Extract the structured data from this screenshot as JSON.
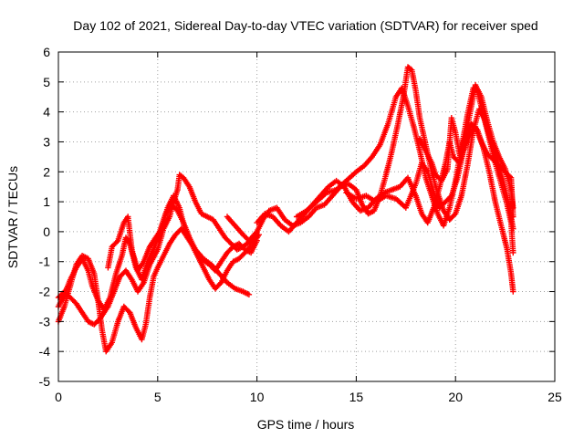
{
  "chart_data": {
    "type": "scatter",
    "title": "Day 102 of 2021, Sidereal Day-to-day VTEC variation (SDTVAR) for receiver sped",
    "xlabel": "GPS time / hours",
    "ylabel": "SDTVAR / TECUs",
    "xlim": [
      0,
      25
    ],
    "ylim": [
      -5,
      6
    ],
    "xticks": [
      "0",
      "5",
      "10",
      "15",
      "20",
      "25"
    ],
    "yticks": [
      "-5",
      "-4",
      "-3",
      "-2",
      "-1",
      "0",
      "1",
      "2",
      "3",
      "4",
      "5",
      "6"
    ],
    "grid": true,
    "marker": "+",
    "color": "#ff0000",
    "series": [
      {
        "points": [
          [
            0,
            -3.0
          ],
          [
            0.3,
            -2.5
          ],
          [
            0.6,
            -1.8
          ],
          [
            0.9,
            -1.1
          ],
          [
            1.2,
            -0.8
          ],
          [
            1.5,
            -0.9
          ],
          [
            1.8,
            -1.4
          ],
          [
            2.0,
            -2.3
          ],
          [
            2.2,
            -3.3
          ],
          [
            2.4,
            -4.0
          ],
          [
            2.7,
            -3.7
          ],
          [
            3.0,
            -3.0
          ],
          [
            3.3,
            -2.5
          ],
          [
            3.6,
            -2.7
          ],
          [
            3.9,
            -3.2
          ],
          [
            4.2,
            -3.6
          ],
          [
            4.4,
            -3.1
          ],
          [
            4.6,
            -2.2
          ],
          [
            4.8,
            -1.5
          ],
          [
            5.0,
            -1.2
          ],
          [
            5.3,
            -0.8
          ],
          [
            5.6,
            -0.4
          ],
          [
            5.9,
            -0.1
          ],
          [
            6.2,
            0.1
          ],
          [
            6.5,
            -0.2
          ],
          [
            6.9,
            -0.6
          ],
          [
            7.3,
            -0.9
          ],
          [
            7.7,
            -1.1
          ],
          [
            8.1,
            -1.4
          ],
          [
            8.5,
            -1.7
          ],
          [
            8.9,
            -1.9
          ],
          [
            9.3,
            -2.0
          ],
          [
            9.6,
            -2.1
          ]
        ]
      },
      {
        "points": [
          [
            0,
            -2.2
          ],
          [
            0.3,
            -2.0
          ],
          [
            0.6,
            -2.2
          ],
          [
            0.9,
            -2.4
          ],
          [
            1.2,
            -2.7
          ],
          [
            1.5,
            -3.0
          ],
          [
            1.8,
            -3.1
          ],
          [
            2.1,
            -2.9
          ],
          [
            2.5,
            -2.5
          ],
          [
            2.8,
            -2.0
          ],
          [
            3.1,
            -1.5
          ],
          [
            3.4,
            -1.3
          ],
          [
            3.7,
            -1.6
          ],
          [
            4.0,
            -2.0
          ],
          [
            4.3,
            -1.7
          ],
          [
            4.6,
            -1.1
          ],
          [
            5.0,
            -0.6
          ],
          [
            5.3,
            0.1
          ],
          [
            5.6,
            0.5
          ],
          [
            5.8,
            1.0
          ],
          [
            6.0,
            1.4
          ],
          [
            6.1,
            1.9
          ],
          [
            6.3,
            1.8
          ],
          [
            6.6,
            1.5
          ],
          [
            6.9,
            1.0
          ],
          [
            7.2,
            0.6
          ],
          [
            7.5,
            0.5
          ],
          [
            7.8,
            0.4
          ],
          [
            8.1,
            0.1
          ],
          [
            8.4,
            -0.2
          ],
          [
            8.7,
            -0.4
          ],
          [
            9.0,
            -0.6
          ],
          [
            9.3,
            -0.5
          ],
          [
            9.7,
            -0.3
          ],
          [
            10.0,
            -0.1
          ]
        ]
      },
      {
        "points": [
          [
            0,
            -2.5
          ],
          [
            0.3,
            -2.1
          ],
          [
            0.6,
            -1.6
          ],
          [
            0.9,
            -1.2
          ],
          [
            1.2,
            -0.9
          ],
          [
            1.5,
            -1.3
          ],
          [
            1.7,
            -1.8
          ],
          [
            2.0,
            -2.3
          ],
          [
            2.3,
            -2.6
          ],
          [
            2.6,
            -2.2
          ],
          [
            2.9,
            -1.4
          ],
          [
            3.2,
            -0.8
          ],
          [
            3.4,
            -0.2
          ],
          [
            3.6,
            -0.4
          ],
          [
            3.9,
            -1.2
          ],
          [
            4.2,
            -1.6
          ],
          [
            4.5,
            -1.0
          ],
          [
            4.8,
            -0.6
          ],
          [
            5.1,
            0.0
          ],
          [
            5.4,
            0.6
          ],
          [
            5.7,
            0.9
          ],
          [
            6.0,
            0.7
          ],
          [
            6.3,
            0.3
          ],
          [
            6.6,
            -0.2
          ],
          [
            6.9,
            -0.6
          ],
          [
            7.2,
            -0.9
          ],
          [
            7.6,
            -1.1
          ],
          [
            7.9,
            -1.3
          ],
          [
            8.2,
            -1.0
          ],
          [
            8.5,
            -0.7
          ],
          [
            8.8,
            -0.5
          ],
          [
            9.1,
            -0.4
          ],
          [
            9.4,
            -0.6
          ],
          [
            9.7,
            -0.7
          ],
          [
            10.0,
            -0.3
          ]
        ]
      },
      {
        "points": [
          [
            2.5,
            -1.2
          ],
          [
            2.7,
            -0.5
          ],
          [
            3.0,
            -0.3
          ],
          [
            3.3,
            0.3
          ],
          [
            3.5,
            0.5
          ],
          [
            3.7,
            -0.6
          ],
          [
            4.0,
            -1.3
          ],
          [
            4.3,
            -1.0
          ],
          [
            4.6,
            -0.5
          ],
          [
            4.9,
            -0.2
          ],
          [
            5.2,
            0.1
          ],
          [
            5.5,
            0.8
          ],
          [
            5.8,
            1.2
          ],
          [
            6.1,
            0.8
          ],
          [
            6.4,
            0.0
          ],
          [
            6.7,
            -0.4
          ],
          [
            7.0,
            -0.8
          ],
          [
            7.3,
            -1.2
          ],
          [
            7.6,
            -1.6
          ],
          [
            7.9,
            -1.9
          ],
          [
            8.2,
            -1.7
          ],
          [
            8.5,
            -1.3
          ],
          [
            8.8,
            -1.0
          ],
          [
            9.1,
            -0.9
          ],
          [
            9.4,
            -0.7
          ],
          [
            9.8,
            -0.4
          ],
          [
            10.1,
            -0.1
          ]
        ]
      },
      {
        "points": [
          [
            8.5,
            0.5
          ],
          [
            8.9,
            0.2
          ],
          [
            9.3,
            -0.1
          ],
          [
            9.6,
            -0.3
          ],
          [
            10.0,
            0.0
          ],
          [
            10.3,
            0.4
          ],
          [
            10.6,
            0.7
          ],
          [
            11.0,
            0.8
          ],
          [
            11.4,
            0.4
          ],
          [
            11.8,
            0.2
          ],
          [
            12.2,
            0.3
          ],
          [
            12.6,
            0.5
          ],
          [
            13.0,
            0.8
          ],
          [
            13.4,
            0.9
          ],
          [
            13.8,
            1.2
          ],
          [
            14.2,
            1.5
          ],
          [
            14.6,
            1.6
          ],
          [
            15.0,
            1.4
          ],
          [
            15.3,
            0.9
          ],
          [
            15.6,
            0.6
          ],
          [
            15.9,
            0.7
          ],
          [
            16.2,
            1.2
          ],
          [
            16.5,
            1.9
          ],
          [
            16.8,
            2.7
          ],
          [
            17.1,
            3.6
          ],
          [
            17.4,
            4.6
          ],
          [
            17.6,
            5.5
          ],
          [
            17.8,
            5.4
          ],
          [
            18.0,
            4.7
          ],
          [
            18.2,
            3.8
          ],
          [
            18.5,
            2.9
          ],
          [
            18.8,
            2.0
          ],
          [
            19.1,
            1.3
          ],
          [
            19.4,
            0.7
          ],
          [
            19.7,
            0.4
          ],
          [
            20.0,
            0.6
          ],
          [
            20.3,
            1.2
          ],
          [
            20.6,
            2.2
          ],
          [
            20.9,
            3.4
          ],
          [
            21.2,
            4.1
          ],
          [
            21.5,
            3.7
          ],
          [
            21.8,
            3.0
          ],
          [
            22.1,
            2.4
          ],
          [
            22.4,
            1.7
          ],
          [
            22.7,
            0.9
          ],
          [
            22.9,
            0.1
          ]
        ]
      },
      {
        "points": [
          [
            10.0,
            0.3
          ],
          [
            10.4,
            0.6
          ],
          [
            10.8,
            0.5
          ],
          [
            11.2,
            0.2
          ],
          [
            11.6,
            0.0
          ],
          [
            12.0,
            0.3
          ],
          [
            12.4,
            0.6
          ],
          [
            12.8,
            0.9
          ],
          [
            13.2,
            1.2
          ],
          [
            13.6,
            1.5
          ],
          [
            14.0,
            1.7
          ],
          [
            14.4,
            1.5
          ],
          [
            14.8,
            1.0
          ],
          [
            15.2,
            0.7
          ],
          [
            15.6,
            0.8
          ],
          [
            16.0,
            1.1
          ],
          [
            16.4,
            1.3
          ],
          [
            16.8,
            1.4
          ],
          [
            17.2,
            1.5
          ],
          [
            17.6,
            1.8
          ],
          [
            18.0,
            1.2
          ],
          [
            18.3,
            0.6
          ],
          [
            18.6,
            0.3
          ],
          [
            18.9,
            0.8
          ],
          [
            19.2,
            1.5
          ],
          [
            19.5,
            2.3
          ],
          [
            19.7,
            3.0
          ],
          [
            19.9,
            2.5
          ],
          [
            20.2,
            2.3
          ],
          [
            20.5,
            3.0
          ],
          [
            20.8,
            3.6
          ],
          [
            21.1,
            3.4
          ],
          [
            21.4,
            2.8
          ],
          [
            21.7,
            2.0
          ],
          [
            22.0,
            1.0
          ],
          [
            22.3,
            0.2
          ],
          [
            22.6,
            -0.6
          ],
          [
            22.8,
            -1.4
          ],
          [
            22.9,
            -2.0
          ]
        ]
      },
      {
        "points": [
          [
            12.0,
            0.5
          ],
          [
            12.5,
            0.7
          ],
          [
            13.0,
            1.0
          ],
          [
            13.5,
            1.3
          ],
          [
            14.0,
            1.4
          ],
          [
            14.5,
            1.7
          ],
          [
            15.0,
            2.0
          ],
          [
            15.4,
            2.2
          ],
          [
            15.8,
            2.5
          ],
          [
            16.2,
            2.9
          ],
          [
            16.6,
            3.6
          ],
          [
            17.0,
            4.5
          ],
          [
            17.3,
            4.8
          ],
          [
            17.6,
            4.2
          ],
          [
            17.9,
            3.5
          ],
          [
            18.2,
            2.7
          ],
          [
            18.5,
            1.8
          ],
          [
            18.8,
            1.2
          ],
          [
            19.1,
            0.6
          ],
          [
            19.4,
            0.2
          ],
          [
            19.7,
            0.8
          ],
          [
            20.0,
            1.7
          ],
          [
            20.3,
            2.8
          ],
          [
            20.6,
            3.9
          ],
          [
            20.9,
            4.8
          ],
          [
            21.1,
            4.7
          ],
          [
            21.4,
            3.9
          ],
          [
            21.7,
            3.1
          ],
          [
            22.0,
            2.3
          ],
          [
            22.3,
            1.6
          ],
          [
            22.6,
            0.9
          ],
          [
            22.8,
            0.3
          ],
          [
            22.9,
            -0.7
          ]
        ]
      },
      {
        "points": [
          [
            14.5,
            1.3
          ],
          [
            15.0,
            1.1
          ],
          [
            15.5,
            1.2
          ],
          [
            16.0,
            1.0
          ],
          [
            16.5,
            1.2
          ],
          [
            17.0,
            1.1
          ],
          [
            17.5,
            0.8
          ],
          [
            18.0,
            1.6
          ],
          [
            18.3,
            2.3
          ],
          [
            18.6,
            2.0
          ],
          [
            18.9,
            1.3
          ],
          [
            19.2,
            0.8
          ],
          [
            19.5,
            1.0
          ],
          [
            19.8,
            1.2
          ],
          [
            20.1,
            1.8
          ],
          [
            20.4,
            2.7
          ],
          [
            20.7,
            3.2
          ],
          [
            21.0,
            3.5
          ],
          [
            21.3,
            3.0
          ],
          [
            21.6,
            2.6
          ],
          [
            21.9,
            2.4
          ],
          [
            22.2,
            2.2
          ],
          [
            22.5,
            2.0
          ],
          [
            22.8,
            1.8
          ],
          [
            22.9,
            0.5
          ]
        ]
      },
      {
        "points": [
          [
            18.2,
            3.1
          ],
          [
            18.5,
            2.7
          ],
          [
            18.8,
            2.3
          ],
          [
            19.0,
            1.9
          ],
          [
            19.3,
            1.7
          ],
          [
            19.6,
            2.1
          ],
          [
            19.8,
            3.8
          ],
          [
            20.0,
            3.3
          ],
          [
            20.2,
            2.6
          ],
          [
            20.5,
            3.2
          ],
          [
            20.8,
            4.2
          ],
          [
            21.0,
            4.9
          ],
          [
            21.3,
            4.5
          ],
          [
            21.6,
            3.7
          ],
          [
            21.9,
            3.0
          ],
          [
            22.2,
            2.5
          ],
          [
            22.5,
            2.1
          ],
          [
            22.8,
            1.4
          ],
          [
            22.9,
            0.8
          ]
        ]
      }
    ]
  }
}
